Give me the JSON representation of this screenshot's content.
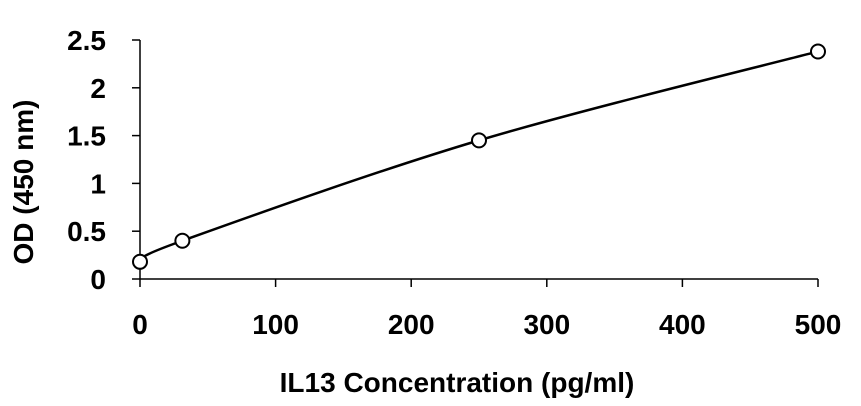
{
  "chart_data": {
    "type": "scatter",
    "title": "",
    "xlabel": "IL13 Concentration (pg/ml)",
    "ylabel": "OD (450 nm)",
    "xlim": [
      0,
      500
    ],
    "ylim": [
      0,
      2.5
    ],
    "x_ticks": [
      0,
      100,
      200,
      300,
      400,
      500
    ],
    "x_tick_labels": [
      "0",
      "100",
      "200",
      "300",
      "400",
      "500"
    ],
    "y_ticks": [
      0,
      0.5,
      1,
      1.5,
      2,
      2.5
    ],
    "y_tick_labels": [
      "0",
      "0.5",
      "1",
      "1.5",
      "2",
      "2.5"
    ],
    "grid": false,
    "legend": "none",
    "series": [
      {
        "marker": "open-circle",
        "fit_line": "smooth",
        "points": [
          {
            "x": 0,
            "y": 0.18
          },
          {
            "x": 31.25,
            "y": 0.4
          },
          {
            "x": 250,
            "y": 1.45
          },
          {
            "x": 500,
            "y": 2.38
          }
        ]
      }
    ],
    "colors": {
      "marker": "#000000",
      "line": "#000000",
      "axis": "#000000"
    }
  }
}
